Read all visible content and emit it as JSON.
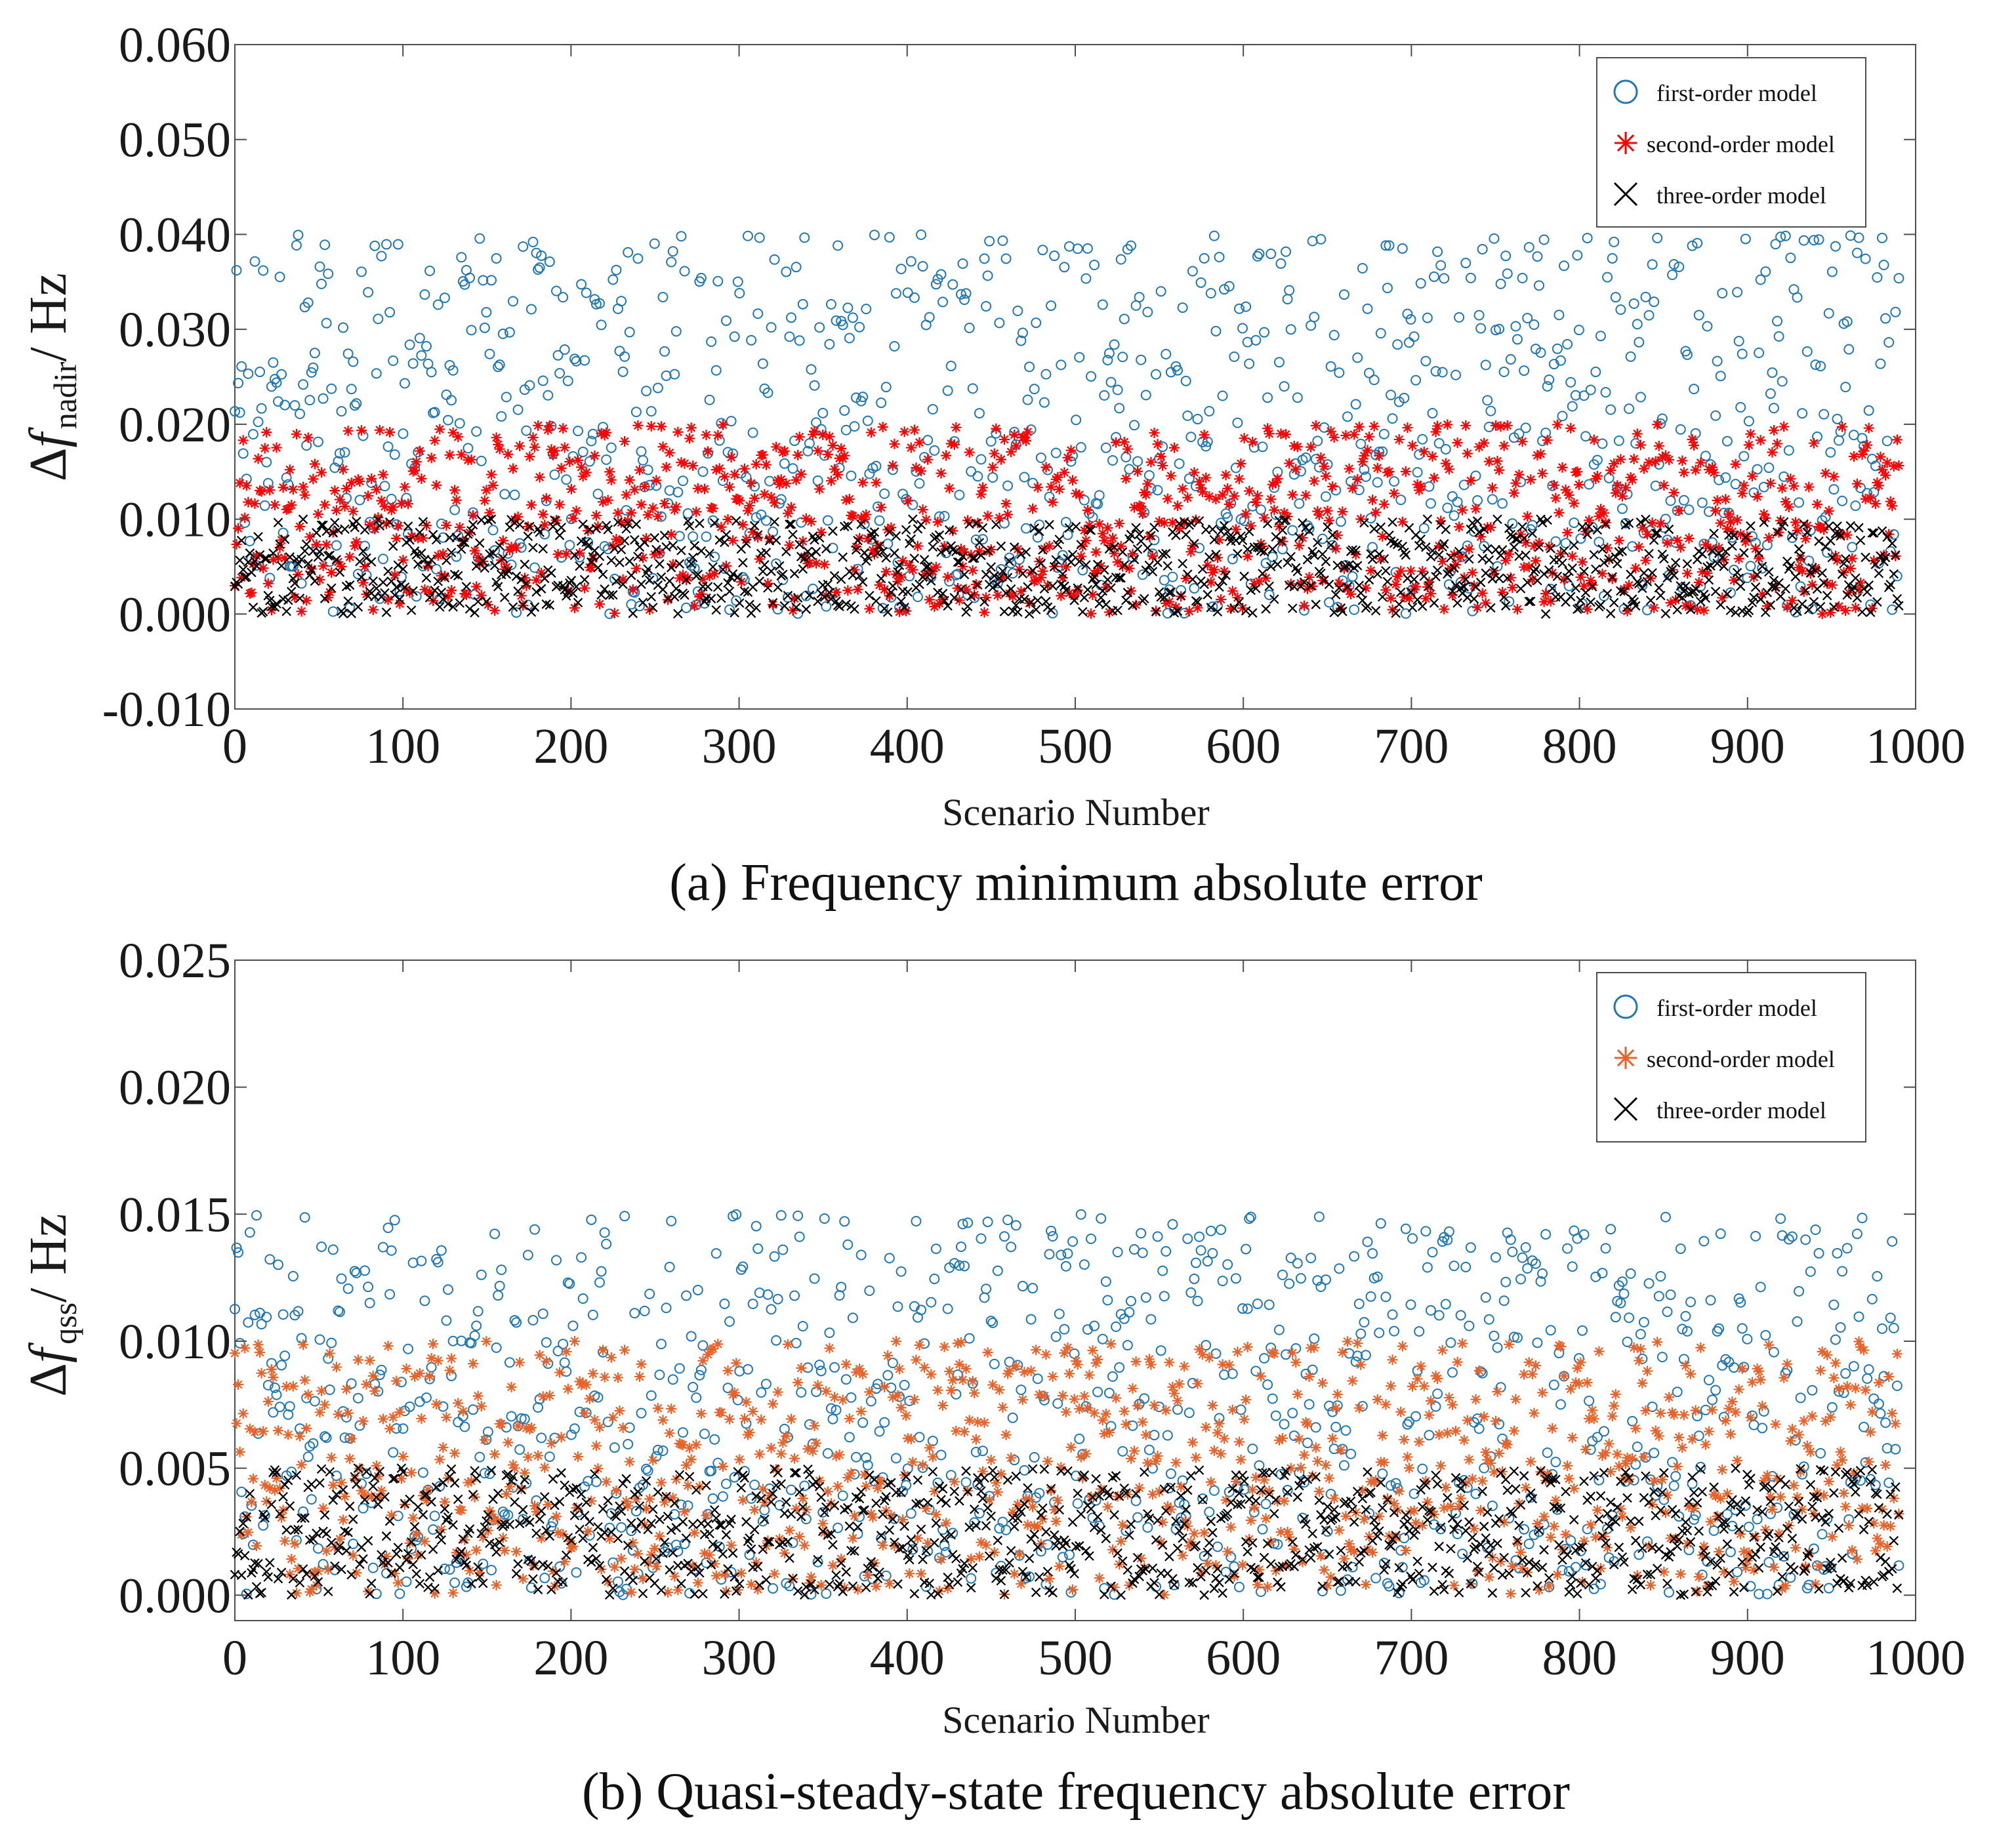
{
  "chart_data": [
    {
      "type": "scatter",
      "caption": "(a) Frequency minimum absolute error",
      "xlabel": "Scenario Number",
      "ylabel": {
        "symbol": "Δ",
        "italic": "f",
        "subscript": "nadir",
        "unit": "/ Hz"
      },
      "xlim": [
        0,
        1000
      ],
      "ylim": [
        -0.01,
        0.06
      ],
      "xticks": [
        "0",
        "100",
        "200",
        "300",
        "400",
        "500",
        "600",
        "700",
        "800",
        "900",
        "1000"
      ],
      "yticks": [
        "-0.010",
        "0.000",
        "0.010",
        "0.020",
        "0.030",
        "0.040",
        "0.050",
        "0.060"
      ],
      "legend_position": "top-right",
      "series": [
        {
          "name": "first-order model",
          "marker": "circle",
          "color": "#1f77b4",
          "n_points": 1000,
          "x_range": [
            0,
            990
          ],
          "y_range": [
            0.0,
            0.04
          ]
        },
        {
          "name": "second-order model",
          "marker": "asterisk",
          "color": "#ff0000",
          "n_points": 1000,
          "x_range": [
            0,
            990
          ],
          "y_range": [
            0.0,
            0.02
          ]
        },
        {
          "name": "three-order model",
          "marker": "x",
          "color": "#000000",
          "n_points": 1000,
          "x_range": [
            0,
            990
          ],
          "y_range": [
            0.0,
            0.01
          ]
        }
      ]
    },
    {
      "type": "scatter",
      "caption": "(b) Quasi-steady-state frequency absolute error",
      "xlabel": "Scenario Number",
      "ylabel": {
        "symbol": "Δ",
        "italic": "f",
        "subscript": "qss",
        "unit": "/ Hz"
      },
      "xlim": [
        0,
        1000
      ],
      "ylim": [
        -0.001,
        0.025
      ],
      "xticks": [
        "0",
        "100",
        "200",
        "300",
        "400",
        "500",
        "600",
        "700",
        "800",
        "900",
        "1000"
      ],
      "yticks": [
        "0.000",
        "0.005",
        "0.010",
        "0.015",
        "0.020",
        "0.025"
      ],
      "legend_position": "top-right",
      "series": [
        {
          "name": "first-order model",
          "marker": "circle",
          "color": "#1f77b4",
          "n_points": 1000,
          "x_range": [
            0,
            990
          ],
          "y_range": [
            0.0,
            0.015
          ]
        },
        {
          "name": "second-order model",
          "marker": "asterisk",
          "color": "#e8632a",
          "n_points": 1000,
          "x_range": [
            0,
            990
          ],
          "y_range": [
            0.0,
            0.01
          ]
        },
        {
          "name": "three-order model",
          "marker": "x",
          "color": "#000000",
          "n_points": 1000,
          "x_range": [
            0,
            990
          ],
          "y_range": [
            0.0,
            0.005
          ]
        }
      ]
    }
  ]
}
